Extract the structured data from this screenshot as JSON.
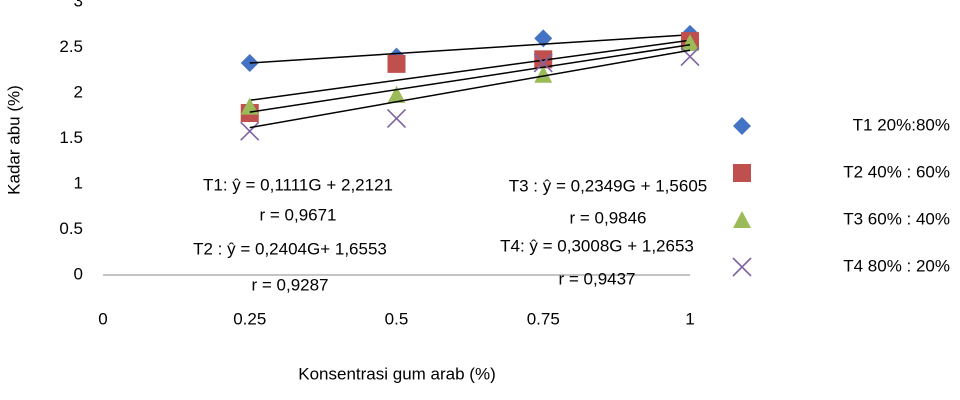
{
  "chart_data": {
    "type": "scatter",
    "x_label": "Konsentrasi gum arab (%)",
    "y_label": "Kadar abu (%)",
    "xlim": [
      0,
      1
    ],
    "xticks": [
      0,
      0.25,
      0.5,
      0.75,
      1
    ],
    "ylim": [
      0,
      3
    ],
    "yticks": [
      0,
      0.5,
      1,
      1.5,
      2,
      2.5,
      3
    ],
    "x": [
      0.25,
      0.5,
      0.75,
      1
    ],
    "trend_x": [
      0.25,
      1
    ],
    "series": [
      {
        "name": "T1 20%:80%",
        "color": "#4472c4",
        "marker": "diamond",
        "values": [
          2.33,
          2.4,
          2.6,
          2.65
        ],
        "trendline": [
          2.33,
          2.64
        ]
      },
      {
        "name": "T2 40% : 60%",
        "color": "#c0504d",
        "marker": "square",
        "values": [
          1.78,
          2.32,
          2.37,
          2.57
        ],
        "trendline": [
          1.92,
          2.58
        ]
      },
      {
        "name": "T3 60% : 40%",
        "color": "#9bbb59",
        "marker": "triangle",
        "values": [
          1.85,
          1.98,
          2.2,
          2.55
        ],
        "trendline": [
          1.79,
          2.53
        ]
      },
      {
        "name": "T4 80% : 20%",
        "color": "#8064a2",
        "marker": "x",
        "values": [
          1.58,
          1.72,
          2.33,
          2.4
        ],
        "trendline": [
          1.62,
          2.47
        ]
      }
    ],
    "annotations": [
      "T1: ŷ = 0,1111G + 2,2121",
      "r = 0,9671",
      "T2 : ŷ = 0,2404G+ 1,6553",
      "r = 0,9287",
      "T3 : ŷ = 0,2349G + 1,5605",
      "r = 0,9846",
      "T4: ŷ = 0,3008G + 1,2653",
      "r = 0,9437"
    ]
  }
}
